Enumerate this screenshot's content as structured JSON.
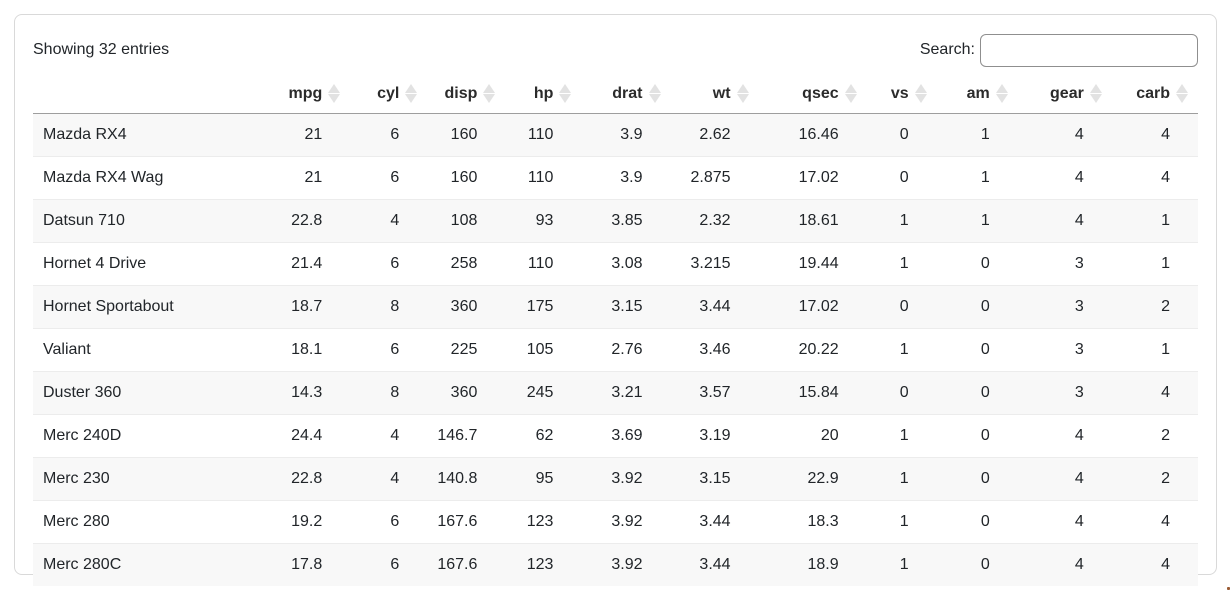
{
  "table": {
    "info_text": "Showing 32 entries",
    "search_label": "Search:",
    "search_value": "",
    "row_header_label": "",
    "columns": [
      "mpg",
      "cyl",
      "disp",
      "hp",
      "drat",
      "wt",
      "qsec",
      "vs",
      "am",
      "gear",
      "carb"
    ],
    "rows": [
      {
        "name": "Mazda RX4",
        "values": [
          "21",
          "6",
          "160",
          "110",
          "3.9",
          "2.62",
          "16.46",
          "0",
          "1",
          "4",
          "4"
        ]
      },
      {
        "name": "Mazda RX4 Wag",
        "values": [
          "21",
          "6",
          "160",
          "110",
          "3.9",
          "2.875",
          "17.02",
          "0",
          "1",
          "4",
          "4"
        ]
      },
      {
        "name": "Datsun 710",
        "values": [
          "22.8",
          "4",
          "108",
          "93",
          "3.85",
          "2.32",
          "18.61",
          "1",
          "1",
          "4",
          "1"
        ]
      },
      {
        "name": "Hornet 4 Drive",
        "values": [
          "21.4",
          "6",
          "258",
          "110",
          "3.08",
          "3.215",
          "19.44",
          "1",
          "0",
          "3",
          "1"
        ]
      },
      {
        "name": "Hornet Sportabout",
        "values": [
          "18.7",
          "8",
          "360",
          "175",
          "3.15",
          "3.44",
          "17.02",
          "0",
          "0",
          "3",
          "2"
        ]
      },
      {
        "name": "Valiant",
        "values": [
          "18.1",
          "6",
          "225",
          "105",
          "2.76",
          "3.46",
          "20.22",
          "1",
          "0",
          "3",
          "1"
        ]
      },
      {
        "name": "Duster 360",
        "values": [
          "14.3",
          "8",
          "360",
          "245",
          "3.21",
          "3.57",
          "15.84",
          "0",
          "0",
          "3",
          "4"
        ]
      },
      {
        "name": "Merc 240D",
        "values": [
          "24.4",
          "4",
          "146.7",
          "62",
          "3.69",
          "3.19",
          "20",
          "1",
          "0",
          "4",
          "2"
        ]
      },
      {
        "name": "Merc 230",
        "values": [
          "22.8",
          "4",
          "140.8",
          "95",
          "3.92",
          "3.15",
          "22.9",
          "1",
          "0",
          "4",
          "2"
        ]
      },
      {
        "name": "Merc 280",
        "values": [
          "19.2",
          "6",
          "167.6",
          "123",
          "3.92",
          "3.44",
          "18.3",
          "1",
          "0",
          "4",
          "4"
        ]
      },
      {
        "name": "Merc 280C",
        "values": [
          "17.8",
          "6",
          "167.6",
          "123",
          "3.92",
          "3.44",
          "18.9",
          "1",
          "0",
          "4",
          "4"
        ]
      }
    ]
  },
  "colors": {
    "stripe": "#f8f8f8",
    "row_border": "#ececec",
    "header_border": "#9e9e9e",
    "card_border": "#d9d9d9",
    "sort_icon": "#e2e2e2",
    "text": "#212529"
  }
}
